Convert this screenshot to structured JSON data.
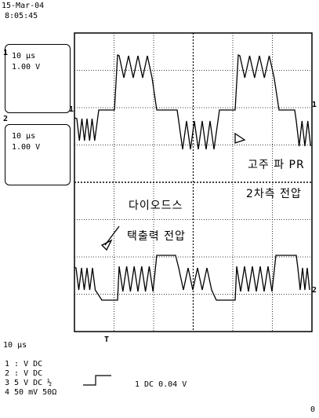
{
  "header": {
    "date": "15-Mar-04",
    "time": "8:05:45"
  },
  "channels": [
    {
      "id": "1",
      "timebase": "10 µs",
      "volts": "1.00 V"
    },
    {
      "id": "2",
      "timebase": "10 µs",
      "volts": "1.00 V"
    }
  ],
  "annotations": {
    "label1_line1": "고주 파 PR",
    "label1_line2": "2차측 전압",
    "label2_line1": "다이오드스",
    "label2_line2": "택출력 전압"
  },
  "markers": {
    "trigger_top": "1",
    "ch2_left": "2",
    "ch1_right": "1",
    "ch2_right": "2",
    "trigger_bottom": "T",
    "corner_zero": "0"
  },
  "footer": {
    "timebase": "10 µs",
    "ch1": "1  :  V  DC",
    "ch2": "2  :  V  DC",
    "ch3": "3  5  V  DC ½",
    "ch4": "4 50 mV  50Ω",
    "trigger": "1  DC 0.04 V"
  }
}
